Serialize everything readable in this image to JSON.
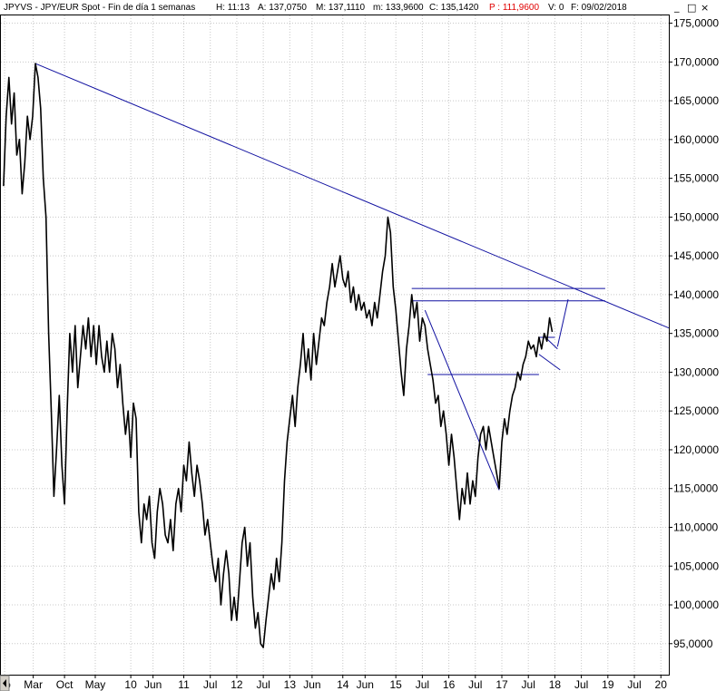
{
  "header": {
    "symbol": "JPYVS - JPY/EUR Spot - Fin de día 1 semanas",
    "high": "H: 11:13",
    "open": "A: 137,0750",
    "max": "M: 137,1110",
    "min": "m: 133,9600",
    "close": "C: 135,1420",
    "price": "P : 111,9600",
    "volume": "V: 0",
    "date": "F: 09/02/2018"
  },
  "window_controls": {
    "minimize": "_",
    "restore": "□",
    "close": "×"
  },
  "colors": {
    "price": "#000000",
    "trendline": "#1010a0",
    "header_price": "#e00000",
    "grid": "#c8c8c8"
  },
  "chart_data": {
    "type": "line",
    "title": "JPYVS - JPY/EUR Spot - Fin de día 1 semanas",
    "y_axis_side": "right",
    "ylim": [
      91,
      176
    ],
    "xlim": [
      2007.55,
      2020.15
    ],
    "yticks": [
      95,
      100,
      105,
      110,
      115,
      120,
      125,
      130,
      135,
      140,
      145,
      150,
      155,
      160,
      165,
      170,
      175
    ],
    "ytick_labels": [
      "95,0000",
      "100,0000",
      "105,0000",
      "110,0000",
      "115,0000",
      "120,0000",
      "125,0000",
      "130,0000",
      "135,0000",
      "140,0000",
      "145,0000",
      "150,0000",
      "155,0000",
      "160,0000",
      "165,0000",
      "170,0000",
      "175,0000"
    ],
    "xticks": [
      {
        "label": "go",
        "x": 2007.62
      },
      {
        "label": "Mar",
        "x": 2008.16
      },
      {
        "label": "Oct",
        "x": 2008.75
      },
      {
        "label": "May",
        "x": 2009.33
      },
      {
        "label": "10",
        "x": 2010.0
      },
      {
        "label": "Jun",
        "x": 2010.42
      },
      {
        "label": "11",
        "x": 2011.0
      },
      {
        "label": "Jul",
        "x": 2011.5
      },
      {
        "label": "12",
        "x": 2012.0
      },
      {
        "label": "Jul",
        "x": 2012.5
      },
      {
        "label": "13",
        "x": 2013.0
      },
      {
        "label": "Jun",
        "x": 2013.42
      },
      {
        "label": "14",
        "x": 2014.0
      },
      {
        "label": "Jun",
        "x": 2014.42
      },
      {
        "label": "15",
        "x": 2015.0
      },
      {
        "label": "Jul",
        "x": 2015.5
      },
      {
        "label": "16",
        "x": 2016.0
      },
      {
        "label": "Jul",
        "x": 2016.5
      },
      {
        "label": "17",
        "x": 2017.0
      },
      {
        "label": "Jul",
        "x": 2017.5
      },
      {
        "label": "18",
        "x": 2018.0
      },
      {
        "label": "Jul",
        "x": 2018.5
      },
      {
        "label": "19",
        "x": 2019.0
      },
      {
        "label": "Jul",
        "x": 2019.5
      },
      {
        "label": "20",
        "x": 2020.0
      }
    ],
    "grid": true,
    "series": [
      {
        "values": [
          [
            2007.6,
            154
          ],
          [
            2007.65,
            163
          ],
          [
            2007.7,
            168
          ],
          [
            2007.75,
            162
          ],
          [
            2007.8,
            166
          ],
          [
            2007.85,
            158
          ],
          [
            2007.9,
            160
          ],
          [
            2007.95,
            153
          ],
          [
            2008.0,
            157
          ],
          [
            2008.05,
            163
          ],
          [
            2008.1,
            160
          ],
          [
            2008.15,
            163
          ],
          [
            2008.2,
            169.8
          ],
          [
            2008.25,
            168
          ],
          [
            2008.3,
            164
          ],
          [
            2008.35,
            155
          ],
          [
            2008.4,
            150
          ],
          [
            2008.45,
            135
          ],
          [
            2008.5,
            125
          ],
          [
            2008.55,
            114
          ],
          [
            2008.6,
            120
          ],
          [
            2008.65,
            127
          ],
          [
            2008.7,
            118
          ],
          [
            2008.75,
            113
          ],
          [
            2008.8,
            125
          ],
          [
            2008.85,
            135
          ],
          [
            2008.9,
            130
          ],
          [
            2008.95,
            136
          ],
          [
            2009.0,
            128
          ],
          [
            2009.05,
            132
          ],
          [
            2009.1,
            136
          ],
          [
            2009.15,
            133
          ],
          [
            2009.2,
            137
          ],
          [
            2009.25,
            132
          ],
          [
            2009.3,
            136
          ],
          [
            2009.35,
            131
          ],
          [
            2009.4,
            136
          ],
          [
            2009.45,
            132
          ],
          [
            2009.5,
            130
          ],
          [
            2009.55,
            134
          ],
          [
            2009.6,
            130
          ],
          [
            2009.65,
            135
          ],
          [
            2009.7,
            133
          ],
          [
            2009.75,
            128
          ],
          [
            2009.8,
            131
          ],
          [
            2009.85,
            126
          ],
          [
            2009.9,
            122
          ],
          [
            2009.95,
            125
          ],
          [
            2010.0,
            119
          ],
          [
            2010.05,
            126
          ],
          [
            2010.1,
            124
          ],
          [
            2010.15,
            112
          ],
          [
            2010.2,
            108
          ],
          [
            2010.25,
            113
          ],
          [
            2010.3,
            111
          ],
          [
            2010.35,
            114
          ],
          [
            2010.4,
            108
          ],
          [
            2010.45,
            106
          ],
          [
            2010.5,
            112
          ],
          [
            2010.55,
            115
          ],
          [
            2010.6,
            113
          ],
          [
            2010.65,
            109
          ],
          [
            2010.7,
            108
          ],
          [
            2010.75,
            111
          ],
          [
            2010.8,
            107
          ],
          [
            2010.85,
            113
          ],
          [
            2010.9,
            115
          ],
          [
            2010.95,
            112
          ],
          [
            2011.0,
            118
          ],
          [
            2011.05,
            116
          ],
          [
            2011.1,
            121
          ],
          [
            2011.15,
            117
          ],
          [
            2011.2,
            114
          ],
          [
            2011.25,
            118
          ],
          [
            2011.3,
            116
          ],
          [
            2011.35,
            113
          ],
          [
            2011.4,
            109
          ],
          [
            2011.45,
            111
          ],
          [
            2011.5,
            108
          ],
          [
            2011.55,
            105
          ],
          [
            2011.6,
            103
          ],
          [
            2011.65,
            106
          ],
          [
            2011.7,
            100
          ],
          [
            2011.75,
            104
          ],
          [
            2011.8,
            107
          ],
          [
            2011.85,
            104
          ],
          [
            2011.9,
            98
          ],
          [
            2011.95,
            101
          ],
          [
            2012.0,
            98
          ],
          [
            2012.05,
            103
          ],
          [
            2012.1,
            108
          ],
          [
            2012.15,
            110
          ],
          [
            2012.2,
            105
          ],
          [
            2012.25,
            108
          ],
          [
            2012.3,
            101
          ],
          [
            2012.35,
            97
          ],
          [
            2012.4,
            99
          ],
          [
            2012.45,
            95
          ],
          [
            2012.5,
            94.5
          ],
          [
            2012.55,
            98
          ],
          [
            2012.6,
            101
          ],
          [
            2012.65,
            104
          ],
          [
            2012.7,
            102
          ],
          [
            2012.75,
            106
          ],
          [
            2012.8,
            103
          ],
          [
            2012.85,
            108
          ],
          [
            2012.9,
            116
          ],
          [
            2012.95,
            121
          ],
          [
            2013.0,
            124
          ],
          [
            2013.05,
            127
          ],
          [
            2013.1,
            123
          ],
          [
            2013.15,
            128
          ],
          [
            2013.2,
            131
          ],
          [
            2013.25,
            135
          ],
          [
            2013.3,
            130
          ],
          [
            2013.35,
            133
          ],
          [
            2013.4,
            129
          ],
          [
            2013.45,
            135
          ],
          [
            2013.5,
            131
          ],
          [
            2013.55,
            134
          ],
          [
            2013.6,
            137
          ],
          [
            2013.65,
            136
          ],
          [
            2013.7,
            139
          ],
          [
            2013.75,
            141
          ],
          [
            2013.8,
            144
          ],
          [
            2013.85,
            141
          ],
          [
            2013.9,
            143
          ],
          [
            2013.95,
            145
          ],
          [
            2014.0,
            142
          ],
          [
            2014.05,
            141
          ],
          [
            2014.1,
            143
          ],
          [
            2014.15,
            139
          ],
          [
            2014.2,
            141
          ],
          [
            2014.25,
            138
          ],
          [
            2014.3,
            140
          ],
          [
            2014.35,
            138
          ],
          [
            2014.4,
            139
          ],
          [
            2014.45,
            137
          ],
          [
            2014.5,
            138
          ],
          [
            2014.55,
            136
          ],
          [
            2014.6,
            139
          ],
          [
            2014.65,
            137
          ],
          [
            2014.7,
            140
          ],
          [
            2014.75,
            143
          ],
          [
            2014.8,
            145
          ],
          [
            2014.85,
            150
          ],
          [
            2014.9,
            148
          ],
          [
            2014.95,
            141
          ],
          [
            2015.0,
            138
          ],
          [
            2015.05,
            134
          ],
          [
            2015.1,
            130
          ],
          [
            2015.15,
            127
          ],
          [
            2015.2,
            133
          ],
          [
            2015.25,
            136
          ],
          [
            2015.3,
            140
          ],
          [
            2015.35,
            137
          ],
          [
            2015.4,
            139
          ],
          [
            2015.45,
            134
          ],
          [
            2015.5,
            137
          ],
          [
            2015.55,
            136
          ],
          [
            2015.6,
            133
          ],
          [
            2015.65,
            131
          ],
          [
            2015.7,
            129
          ],
          [
            2015.75,
            126
          ],
          [
            2015.8,
            127
          ],
          [
            2015.85,
            123
          ],
          [
            2015.9,
            125
          ],
          [
            2015.95,
            122
          ],
          [
            2016.0,
            118
          ],
          [
            2016.05,
            122
          ],
          [
            2016.1,
            119
          ],
          [
            2016.15,
            115
          ],
          [
            2016.2,
            111
          ],
          [
            2016.25,
            115
          ],
          [
            2016.3,
            113
          ],
          [
            2016.35,
            117
          ],
          [
            2016.4,
            113
          ],
          [
            2016.45,
            116
          ],
          [
            2016.5,
            114
          ],
          [
            2016.55,
            119
          ],
          [
            2016.6,
            122
          ],
          [
            2016.65,
            123
          ],
          [
            2016.7,
            120
          ],
          [
            2016.75,
            123
          ],
          [
            2016.8,
            121
          ],
          [
            2016.85,
            119
          ],
          [
            2016.9,
            117
          ],
          [
            2016.95,
            115
          ],
          [
            2017.0,
            121
          ],
          [
            2017.05,
            124
          ],
          [
            2017.1,
            122
          ],
          [
            2017.15,
            125
          ],
          [
            2017.2,
            127
          ],
          [
            2017.25,
            128
          ],
          [
            2017.3,
            130
          ],
          [
            2017.35,
            129
          ],
          [
            2017.4,
            131
          ],
          [
            2017.45,
            132
          ],
          [
            2017.5,
            134
          ],
          [
            2017.55,
            133
          ],
          [
            2017.6,
            133.5
          ],
          [
            2017.65,
            132
          ],
          [
            2017.7,
            134.5
          ],
          [
            2017.75,
            133
          ],
          [
            2017.8,
            135
          ],
          [
            2017.85,
            134
          ],
          [
            2017.9,
            137
          ],
          [
            2017.95,
            135.2
          ]
        ]
      }
    ],
    "annotations": [
      {
        "type": "trendline",
        "from": [
          2008.2,
          169.8
        ],
        "to": [
          2020.15,
          135.7
        ]
      },
      {
        "type": "trendline",
        "from": [
          2015.55,
          138
        ],
        "to": [
          2016.95,
          114.8
        ]
      },
      {
        "type": "hline",
        "from": [
          2015.3,
          140.8
        ],
        "to": [
          2018.95,
          140.8
        ]
      },
      {
        "type": "hline",
        "from": [
          2015.3,
          139.2
        ],
        "to": [
          2018.95,
          139.2
        ]
      },
      {
        "type": "hline",
        "from": [
          2015.6,
          129.7
        ],
        "to": [
          2017.7,
          129.7
        ]
      },
      {
        "type": "hline",
        "from": [
          2017.7,
          134.5
        ],
        "to": [
          2018.0,
          134.5
        ]
      },
      {
        "type": "trendline",
        "from": [
          2017.7,
          132.3
        ],
        "to": [
          2018.1,
          130.3
        ]
      },
      {
        "type": "trendline",
        "from": [
          2017.85,
          134.3
        ],
        "to": [
          2018.05,
          133.0
        ]
      },
      {
        "type": "trendline",
        "from": [
          2018.05,
          133.3
        ],
        "to": [
          2018.25,
          139.4
        ]
      }
    ]
  }
}
